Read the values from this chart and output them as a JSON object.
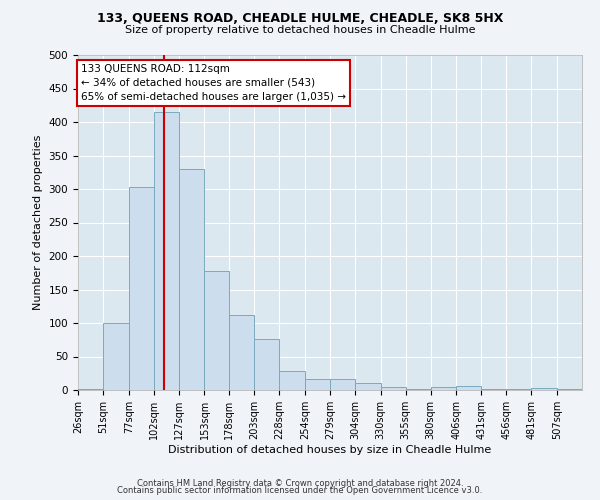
{
  "title": "133, QUEENS ROAD, CHEADLE HULME, CHEADLE, SK8 5HX",
  "subtitle": "Size of property relative to detached houses in Cheadle Hulme",
  "xlabel": "Distribution of detached houses by size in Cheadle Hulme",
  "ylabel": "Number of detached properties",
  "bar_color": "#ccdded",
  "bar_edge_color": "#7aaabe",
  "background_color": "#dce8f0",
  "grid_color": "#ffffff",
  "vline_value": 112,
  "vline_color": "#cc0000",
  "annotation_text": "133 QUEENS ROAD: 112sqm\n← 34% of detached houses are smaller (543)\n65% of semi-detached houses are larger (1,035) →",
  "annotation_box_color": "#ffffff",
  "annotation_box_edge": "#cc0000",
  "bin_edges": [
    26,
    51,
    77,
    102,
    127,
    153,
    178,
    203,
    228,
    254,
    279,
    304,
    330,
    355,
    380,
    406,
    431,
    456,
    481,
    507,
    532
  ],
  "bar_heights": [
    2,
    100,
    303,
    415,
    330,
    177,
    112,
    76,
    28,
    16,
    16,
    10,
    5,
    2,
    4,
    6,
    2,
    1,
    3,
    2
  ],
  "ylim": [
    0,
    500
  ],
  "yticks": [
    0,
    50,
    100,
    150,
    200,
    250,
    300,
    350,
    400,
    450,
    500
  ],
  "footer_line1": "Contains HM Land Registry data © Crown copyright and database right 2024.",
  "footer_line2": "Contains public sector information licensed under the Open Government Licence v3.0."
}
